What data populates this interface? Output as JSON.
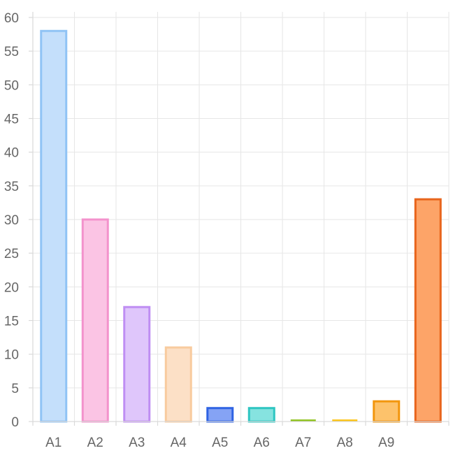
{
  "chart_data": {
    "type": "bar",
    "categories": [
      "A1",
      "A2",
      "A3",
      "A4",
      "A5",
      "A6",
      "A7",
      "A8",
      "A9",
      ""
    ],
    "values": [
      58,
      30,
      17,
      11,
      2,
      2,
      0,
      0,
      3,
      33
    ],
    "ylim": [
      0,
      60
    ],
    "yticks": [
      0,
      5,
      10,
      15,
      20,
      25,
      30,
      35,
      40,
      45,
      50,
      55,
      60
    ],
    "grid": true,
    "legend": "none",
    "bar_colors": [
      {
        "fill": "#c4dffb",
        "stroke": "#90c3f5"
      },
      {
        "fill": "#fbc4e4",
        "stroke": "#f392cc"
      },
      {
        "fill": "#dfc6fb",
        "stroke": "#bf8ef3"
      },
      {
        "fill": "#fce0c6",
        "stroke": "#f8cb9e"
      },
      {
        "fill": "#85a3f5",
        "stroke": "#2f63e3"
      },
      {
        "fill": "#86e3e0",
        "stroke": "#2dc5c1"
      },
      {
        "fill": "#c4e08a",
        "stroke": "#8fc31f"
      },
      {
        "fill": "#fde08a",
        "stroke": "#fcc419"
      },
      {
        "fill": "#fdc26b",
        "stroke": "#f2960e"
      },
      {
        "fill": "#fda468",
        "stroke": "#e8641b"
      }
    ]
  }
}
